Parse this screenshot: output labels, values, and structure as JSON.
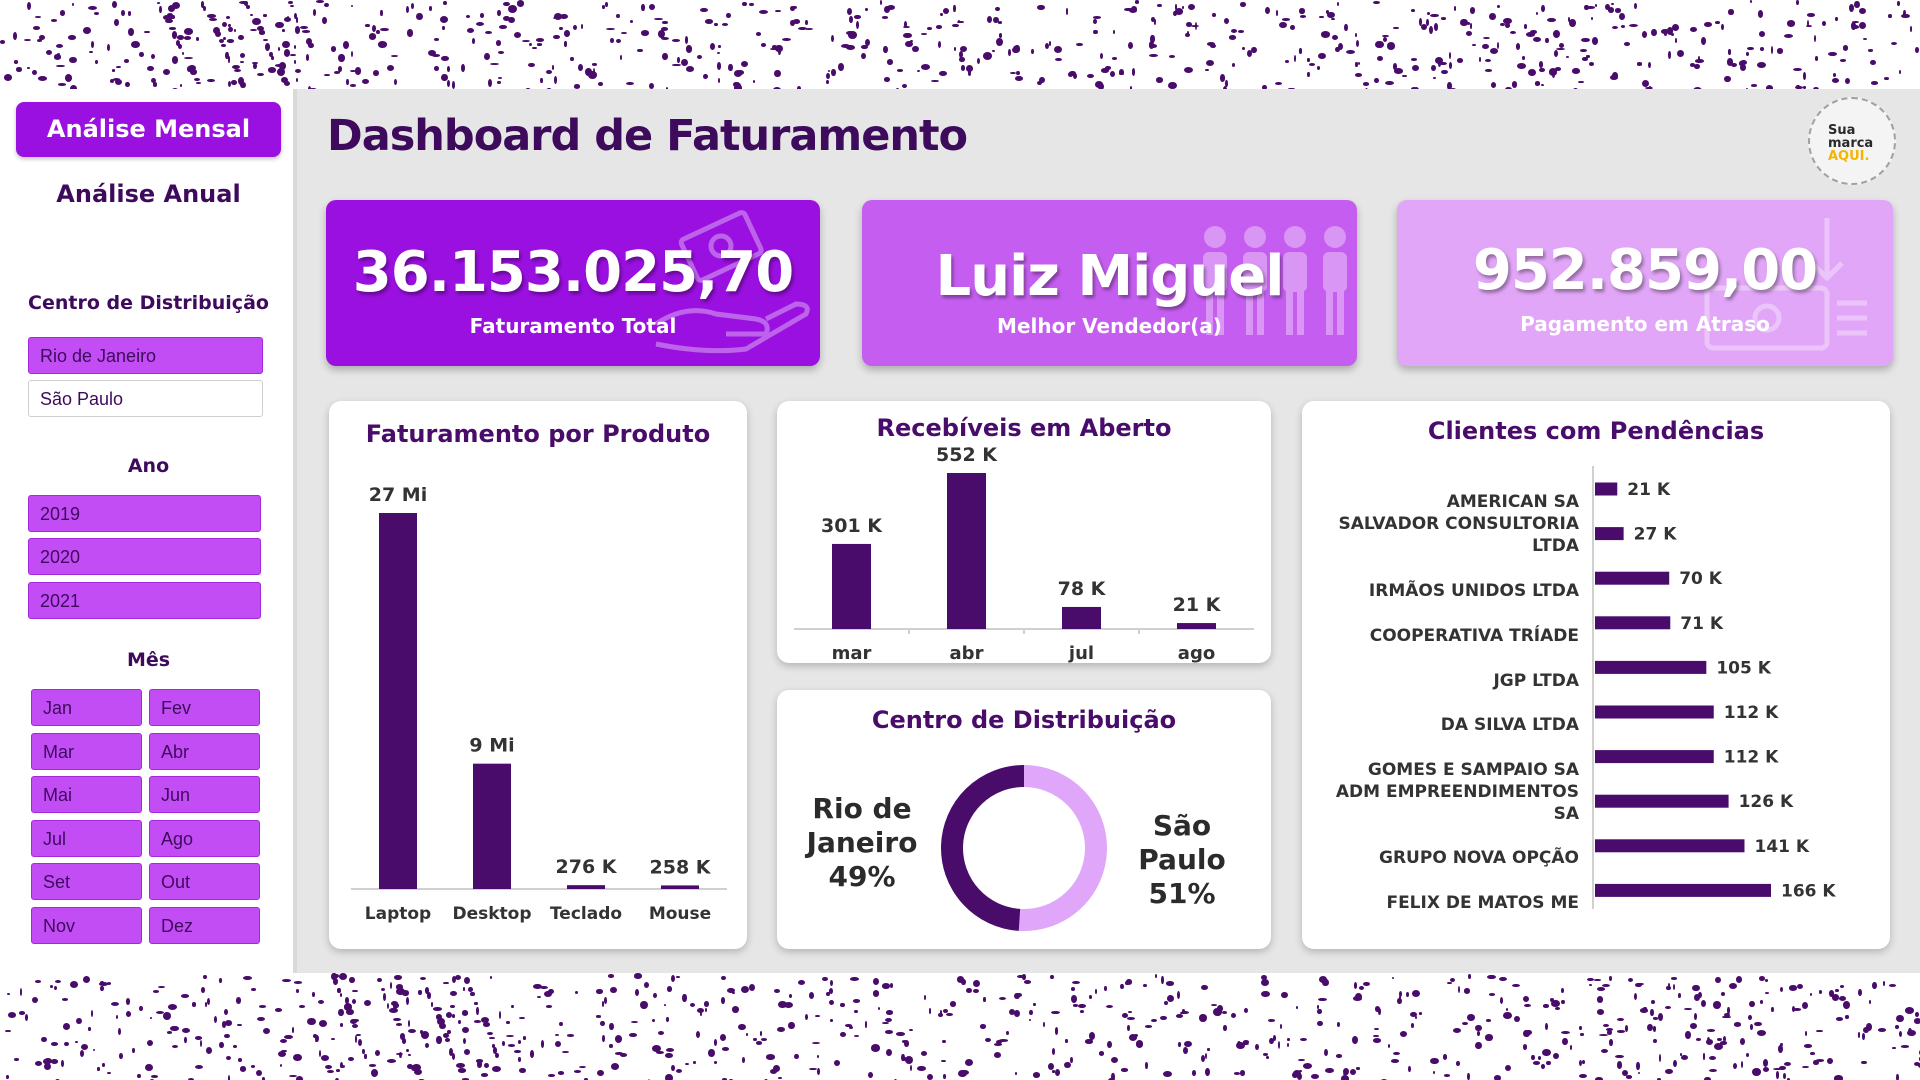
{
  "sidebar": {
    "btn_mensal": "Análise Mensal",
    "btn_anual": "Análise Anual",
    "cd_heading": "Centro de Distribuição",
    "cd_options": [
      "Rio de Janeiro",
      "São Paulo"
    ],
    "ano_heading": "Ano",
    "ano_options": [
      "2019",
      "2020",
      "2021"
    ],
    "mes_heading": "Mês",
    "mes_options": [
      "Jan",
      "Fev",
      "Mar",
      "Abr",
      "Mai",
      "Jun",
      "Jul",
      "Ago",
      "Set",
      "Out",
      "Nov",
      "Dez"
    ]
  },
  "header": {
    "title": "Dashboard de Faturamento",
    "logo_line1": "Sua",
    "logo_line2": "marca",
    "logo_line3": "AQUI."
  },
  "kpis": [
    {
      "value": "36.153.025,70",
      "label": "Faturamento Total",
      "color": "#9a10e0"
    },
    {
      "value": "Luiz Miguel",
      "label": "Melhor Vendedor(a)",
      "color": "#c55ef0"
    },
    {
      "value": "952.859,00",
      "label": "Pagamento em Atraso",
      "color": "#e1a6f7"
    }
  ],
  "colors": {
    "bar": "#4a0c6b",
    "donut_light": "#dfa6f9",
    "accent": "#9a10e0"
  },
  "chart_data": [
    {
      "type": "bar",
      "title": "Faturamento por Produto",
      "categories": [
        "Laptop",
        "Desktop",
        "Teclado",
        "Mouse"
      ],
      "values": [
        27000000,
        9000000,
        276000,
        258000
      ],
      "data_labels": [
        "27 Mi",
        "9 Mi",
        "276 K",
        "258 K"
      ]
    },
    {
      "type": "bar",
      "title": "Recebíveis em Aberto",
      "categories": [
        "mar",
        "abr",
        "jul",
        "ago"
      ],
      "values": [
        301000,
        552000,
        78000,
        21000
      ],
      "data_labels": [
        "301 K",
        "552 K",
        "78 K",
        "21 K"
      ]
    },
    {
      "type": "pie",
      "title": "Centro de Distribuição",
      "categories": [
        "Rio de Janeiro",
        "São Paulo"
      ],
      "values": [
        49,
        51
      ],
      "data_labels": [
        "Rio de Janeiro 49%",
        "São Paulo 51%"
      ],
      "label_lines": [
        [
          "Rio de",
          "Janeiro",
          "49%"
        ],
        [
          "São Paulo",
          "51%"
        ]
      ]
    },
    {
      "type": "bar",
      "orientation": "horizontal",
      "title": "Clientes com Pendências",
      "categories": [
        "AMERICAN SA",
        "SALVADOR CONSULTORIA LTDA",
        "IRMÃOS UNIDOS LTDA",
        "COOPERATIVA TRÍADE",
        "JGP LTDA",
        "DA SILVA LTDA",
        "GOMES E SAMPAIO SA",
        "ADM EMPREENDIMENTOS SA",
        "GRUPO NOVA OPÇÃO",
        "FELIX DE MATOS ME"
      ],
      "values": [
        21000,
        27000,
        70000,
        71000,
        105000,
        112000,
        112000,
        126000,
        141000,
        166000
      ],
      "data_labels": [
        "21 K",
        "27 K",
        "70 K",
        "71 K",
        "105 K",
        "112 K",
        "112 K",
        "126 K",
        "141 K",
        "166 K"
      ]
    }
  ]
}
